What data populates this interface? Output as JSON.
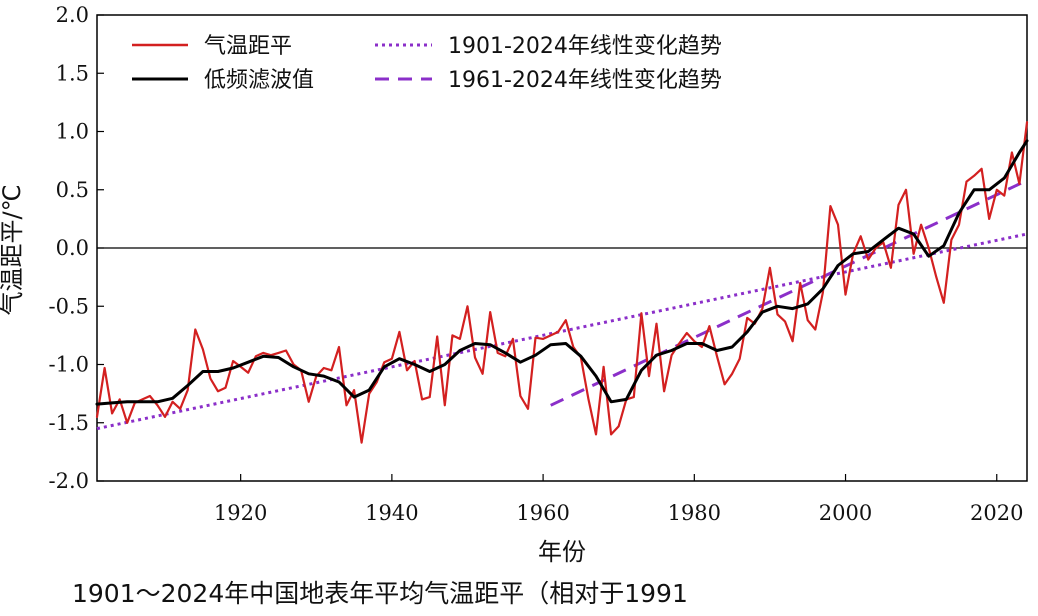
{
  "caption": "1901～2024年中国地表年平均气温距平（相对于1991",
  "chart_data": {
    "type": "line",
    "xlabel": "年份",
    "ylabel": "气温距平/℃",
    "xlim": [
      1901,
      2024
    ],
    "ylim": [
      -2.0,
      2.0
    ],
    "xticks": [
      1920,
      1940,
      1960,
      1980,
      2000,
      2020
    ],
    "yticks": [
      "-2.0",
      "-1.5",
      "-1.0",
      "-0.5",
      "0.0",
      "0.5",
      "1.0",
      "1.5",
      "2.0"
    ],
    "zero_line": true,
    "grid": false,
    "legend_position": "top",
    "colors": {
      "anomaly": "#d32020",
      "filter": "#000000",
      "trend": "#8b2fc9"
    },
    "series": [
      {
        "name": "气温距平",
        "style": "red-line",
        "x": [
          1901,
          1902,
          1903,
          1904,
          1905,
          1906,
          1907,
          1908,
          1909,
          1910,
          1911,
          1912,
          1913,
          1914,
          1915,
          1916,
          1917,
          1918,
          1919,
          1920,
          1921,
          1922,
          1923,
          1924,
          1925,
          1926,
          1927,
          1928,
          1929,
          1930,
          1931,
          1932,
          1933,
          1934,
          1935,
          1936,
          1937,
          1938,
          1939,
          1940,
          1941,
          1942,
          1943,
          1944,
          1945,
          1946,
          1947,
          1948,
          1949,
          1950,
          1951,
          1952,
          1953,
          1954,
          1955,
          1956,
          1957,
          1958,
          1959,
          1960,
          1961,
          1962,
          1963,
          1964,
          1965,
          1966,
          1967,
          1968,
          1969,
          1970,
          1971,
          1972,
          1973,
          1974,
          1975,
          1976,
          1977,
          1978,
          1979,
          1980,
          1981,
          1982,
          1983,
          1984,
          1985,
          1986,
          1987,
          1988,
          1989,
          1990,
          1991,
          1992,
          1993,
          1994,
          1995,
          1996,
          1997,
          1998,
          1999,
          2000,
          2001,
          2002,
          2003,
          2004,
          2005,
          2006,
          2007,
          2008,
          2009,
          2010,
          2011,
          2012,
          2013,
          2014,
          2015,
          2016,
          2017,
          2018,
          2019,
          2020,
          2021,
          2022,
          2023,
          2024
        ],
        "y": [
          -1.45,
          -1.03,
          -1.42,
          -1.3,
          -1.5,
          -1.33,
          -1.3,
          -1.27,
          -1.35,
          -1.45,
          -1.32,
          -1.38,
          -1.22,
          -0.7,
          -0.87,
          -1.12,
          -1.23,
          -1.2,
          -0.97,
          -1.02,
          -1.07,
          -0.93,
          -0.9,
          -0.92,
          -0.9,
          -0.88,
          -1.0,
          -1.05,
          -1.32,
          -1.1,
          -1.03,
          -1.05,
          -0.85,
          -1.35,
          -1.22,
          -1.67,
          -1.25,
          -1.15,
          -0.98,
          -0.95,
          -0.72,
          -1.05,
          -0.97,
          -1.3,
          -1.28,
          -0.76,
          -1.35,
          -0.75,
          -0.78,
          -0.5,
          -0.94,
          -1.08,
          -0.55,
          -0.9,
          -0.93,
          -0.78,
          -1.27,
          -1.38,
          -0.77,
          -0.78,
          -0.75,
          -0.72,
          -0.62,
          -0.85,
          -0.94,
          -1.3,
          -1.6,
          -1.02,
          -1.6,
          -1.53,
          -1.3,
          -1.28,
          -0.56,
          -1.1,
          -0.65,
          -1.23,
          -0.92,
          -0.82,
          -0.73,
          -0.8,
          -0.85,
          -0.67,
          -0.93,
          -1.17,
          -1.08,
          -0.95,
          -0.6,
          -0.65,
          -0.52,
          -0.17,
          -0.57,
          -0.63,
          -0.8,
          -0.3,
          -0.62,
          -0.7,
          -0.38,
          0.36,
          0.2,
          -0.4,
          -0.05,
          0.1,
          -0.1,
          0.0,
          0.05,
          -0.17,
          0.37,
          0.5,
          -0.05,
          0.2,
          0.0,
          -0.25,
          -0.47,
          0.07,
          0.2,
          0.57,
          0.62,
          0.68,
          0.25,
          0.5,
          0.45,
          0.82,
          0.55,
          1.08
        ]
      },
      {
        "name": "低频滤波值",
        "style": "black-line",
        "x": [
          1901,
          1903,
          1905,
          1907,
          1909,
          1911,
          1913,
          1915,
          1917,
          1919,
          1921,
          1923,
          1925,
          1927,
          1929,
          1931,
          1933,
          1935,
          1937,
          1939,
          1941,
          1943,
          1945,
          1947,
          1949,
          1951,
          1953,
          1955,
          1957,
          1959,
          1961,
          1963,
          1965,
          1967,
          1969,
          1971,
          1973,
          1975,
          1977,
          1979,
          1981,
          1983,
          1985,
          1987,
          1989,
          1991,
          1993,
          1995,
          1997,
          1999,
          2001,
          2003,
          2005,
          2007,
          2009,
          2011,
          2013,
          2015,
          2017,
          2019,
          2021,
          2023,
          2024
        ],
        "y": [
          -1.34,
          -1.33,
          -1.32,
          -1.32,
          -1.32,
          -1.29,
          -1.18,
          -1.06,
          -1.06,
          -1.03,
          -0.98,
          -0.93,
          -0.94,
          -1.02,
          -1.08,
          -1.1,
          -1.15,
          -1.28,
          -1.22,
          -1.02,
          -0.95,
          -1.0,
          -1.06,
          -1.0,
          -0.88,
          -0.82,
          -0.83,
          -0.9,
          -0.98,
          -0.92,
          -0.83,
          -0.82,
          -0.93,
          -1.1,
          -1.32,
          -1.3,
          -1.05,
          -0.92,
          -0.88,
          -0.82,
          -0.82,
          -0.88,
          -0.85,
          -0.72,
          -0.55,
          -0.5,
          -0.52,
          -0.48,
          -0.35,
          -0.15,
          -0.05,
          -0.03,
          0.07,
          0.17,
          0.12,
          -0.07,
          0.02,
          0.3,
          0.5,
          0.5,
          0.6,
          0.82,
          0.92
        ]
      },
      {
        "name": "1901-2024年线性变化趋势",
        "style": "dotted",
        "x": [
          1901,
          2024
        ],
        "y": [
          -1.55,
          0.12
        ]
      },
      {
        "name": "1961-2024年线性变化趋势",
        "style": "dashed",
        "x": [
          1961,
          2024
        ],
        "y": [
          -1.35,
          0.58
        ]
      }
    ]
  }
}
